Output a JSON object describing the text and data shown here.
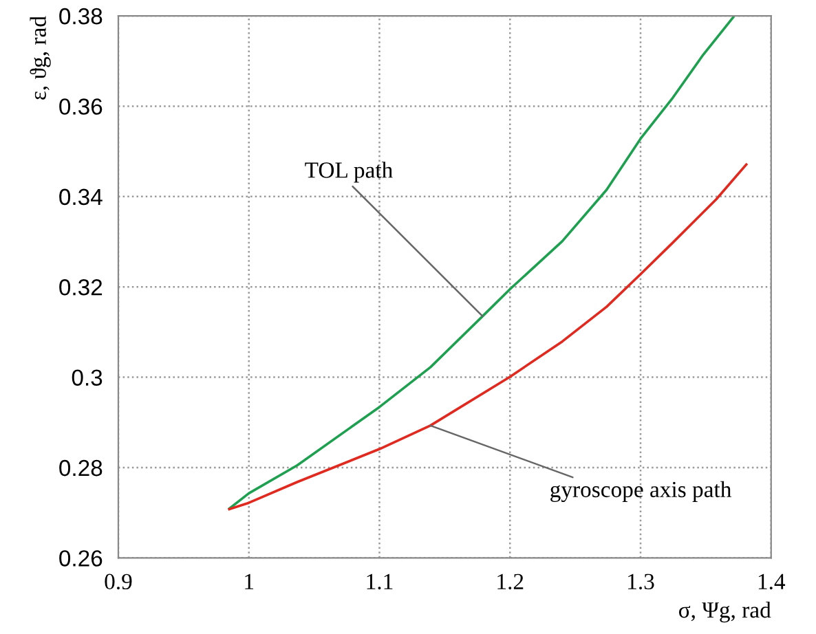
{
  "chart_data": {
    "type": "line",
    "xlabel": "σ, Ψg, rad",
    "ylabel": "ε, ϑg, rad",
    "xlim": [
      0.9,
      1.4
    ],
    "xticks": [
      0.9,
      1,
      1.1,
      1.2,
      1.3,
      1.4
    ],
    "ylim": [
      0.26,
      0.38
    ],
    "yticks": [
      0.26,
      0.28,
      {
        "value": 0.3,
        "label": "0.3"
      },
      0.32,
      0.34,
      0.36,
      0.38
    ],
    "grid": true,
    "line_style": "solid",
    "marker": "none",
    "series": [
      {
        "color": "#1fa050",
        "x": [
          0.985,
          1.0,
          1.037,
          1.1,
          1.139,
          1.179,
          1.2,
          1.24,
          1.274,
          1.3,
          1.324,
          1.348,
          1.371
        ],
        "values": [
          0.2709,
          0.2743,
          0.2805,
          0.2934,
          0.3022,
          0.3135,
          0.3195,
          0.3301,
          0.3415,
          0.3528,
          0.3616,
          0.3714,
          0.3797
        ]
      },
      {
        "color": "#e02a20",
        "x": [
          0.985,
          1.0,
          1.037,
          1.1,
          1.139,
          1.2,
          1.24,
          1.274,
          1.3,
          1.324,
          1.358,
          1.381
        ],
        "values": [
          0.2708,
          0.2722,
          0.2768,
          0.2841,
          0.2893,
          0.3001,
          0.3079,
          0.3156,
          0.3228,
          0.3296,
          0.3394,
          0.3471
        ]
      }
    ],
    "annotations": [
      {
        "text": "TOL path",
        "x": 1.179,
        "y": 0.3135
      },
      {
        "text": "gyroscope axis path",
        "x": 1.139,
        "y": 0.2893
      }
    ]
  }
}
